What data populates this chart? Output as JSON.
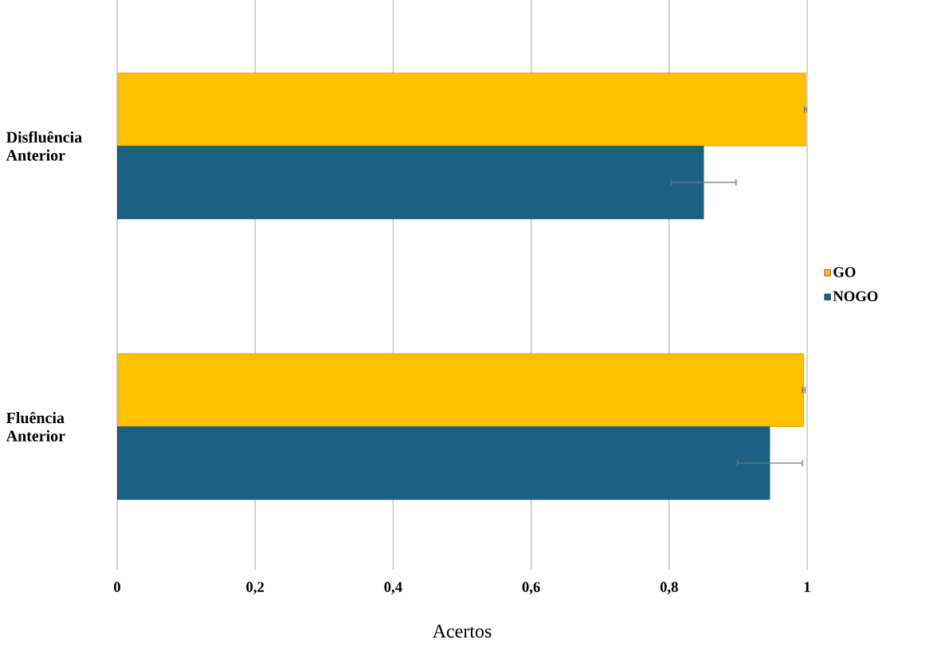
{
  "chart_data": {
    "type": "bar",
    "orientation": "horizontal",
    "categories": [
      "Disfluência Anterior",
      "Fluência Anterior"
    ],
    "series": [
      {
        "name": "GO",
        "color": "#ffc000",
        "values": [
          0.998,
          0.995
        ],
        "errors": [
          0.002,
          0.002
        ]
      },
      {
        "name": "NOGO",
        "color": "#1a6182",
        "values": [
          0.85,
          0.946
        ],
        "errors": [
          0.047,
          0.047
        ]
      }
    ],
    "xlabel": "Acertos",
    "xlim": [
      0,
      1
    ],
    "xticks": [
      0,
      {
        "value": 0.2,
        "label": "0,2"
      },
      {
        "value": 0.4,
        "label": "0,4"
      },
      {
        "value": 0.6,
        "label": "0,6"
      },
      {
        "value": 0.8,
        "label": "0,8"
      },
      1
    ],
    "grid": "x",
    "legend": "right"
  }
}
